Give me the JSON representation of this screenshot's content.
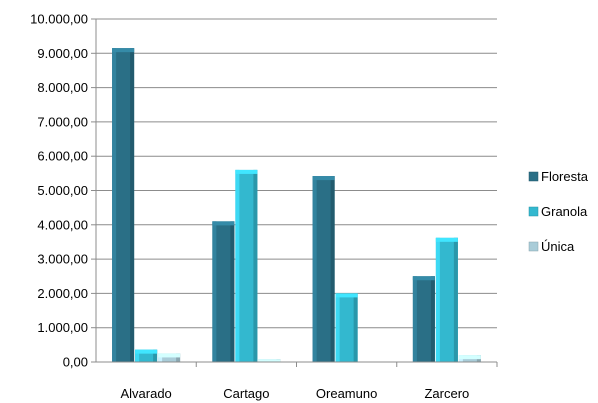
{
  "chart_data": {
    "type": "bar",
    "categories": [
      "Alvarado",
      "Cartago",
      "Oreamuno",
      "Zarcero"
    ],
    "series": [
      {
        "name": "Floresta",
        "values": [
          9150,
          4100,
          5420,
          2500
        ],
        "color": "#2a6f86"
      },
      {
        "name": "Granola",
        "values": [
          360,
          5600,
          2000,
          3620
        ],
        "color": "#33b8cf"
      },
      {
        "name": "Única",
        "values": [
          250,
          80,
          0,
          200
        ],
        "color": "#a9ccd8"
      }
    ],
    "ylim": [
      0,
      10000
    ],
    "yticks": [
      "0,00",
      "1.000,00",
      "2.000,00",
      "3.000,00",
      "4.000,00",
      "5.000,00",
      "6.000,00",
      "7.000,00",
      "8.000,00",
      "9.000,00",
      "10.000,00"
    ],
    "grid": true,
    "legend": "right"
  }
}
